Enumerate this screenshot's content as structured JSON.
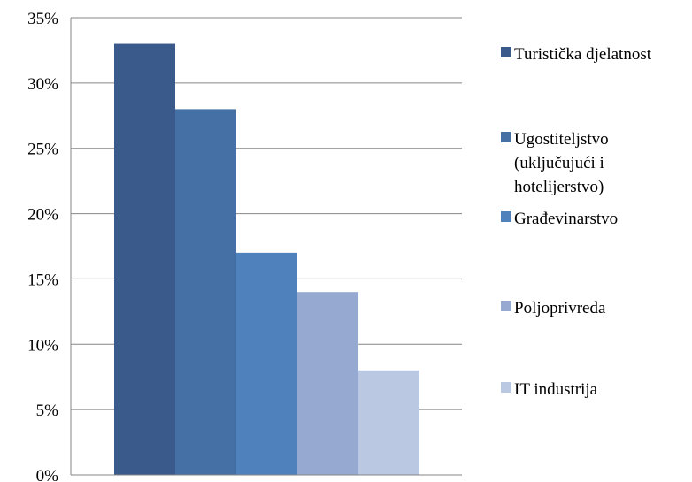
{
  "chart_data": {
    "type": "bar",
    "title": "",
    "xlabel": "",
    "ylabel": "",
    "ylim": [
      0,
      35
    ],
    "y_ticks": [
      "0%",
      "5%",
      "10%",
      "15%",
      "20%",
      "25%",
      "30%",
      "35%"
    ],
    "y_tick_values": [
      0,
      5,
      10,
      15,
      20,
      25,
      30,
      35
    ],
    "grid": true,
    "legend_position": "right",
    "series": [
      {
        "name": "Turistička djelatnost",
        "value": 33,
        "color": "#3a5a8c"
      },
      {
        "name": "Ugostiteljstvo (uključujući i hotelijerstvo)",
        "value": 28,
        "color": "#4470a5"
      },
      {
        "name": "Građevinarstvo",
        "value": 17,
        "color": "#4f81bd"
      },
      {
        "name": "Poljoprivreda",
        "value": 14,
        "color": "#95a9d1"
      },
      {
        "name": "IT industrija",
        "value": 8,
        "color": "#bac8e2"
      }
    ],
    "legend_lines": [
      [
        "Turistička djelatnost"
      ],
      [
        "Ugostiteljstvo",
        "(uključujući i",
        "hotelijerstvo)"
      ],
      [
        "Građevinarstvo"
      ],
      [
        "Poljoprivreda"
      ],
      [
        "IT industrija"
      ]
    ]
  }
}
